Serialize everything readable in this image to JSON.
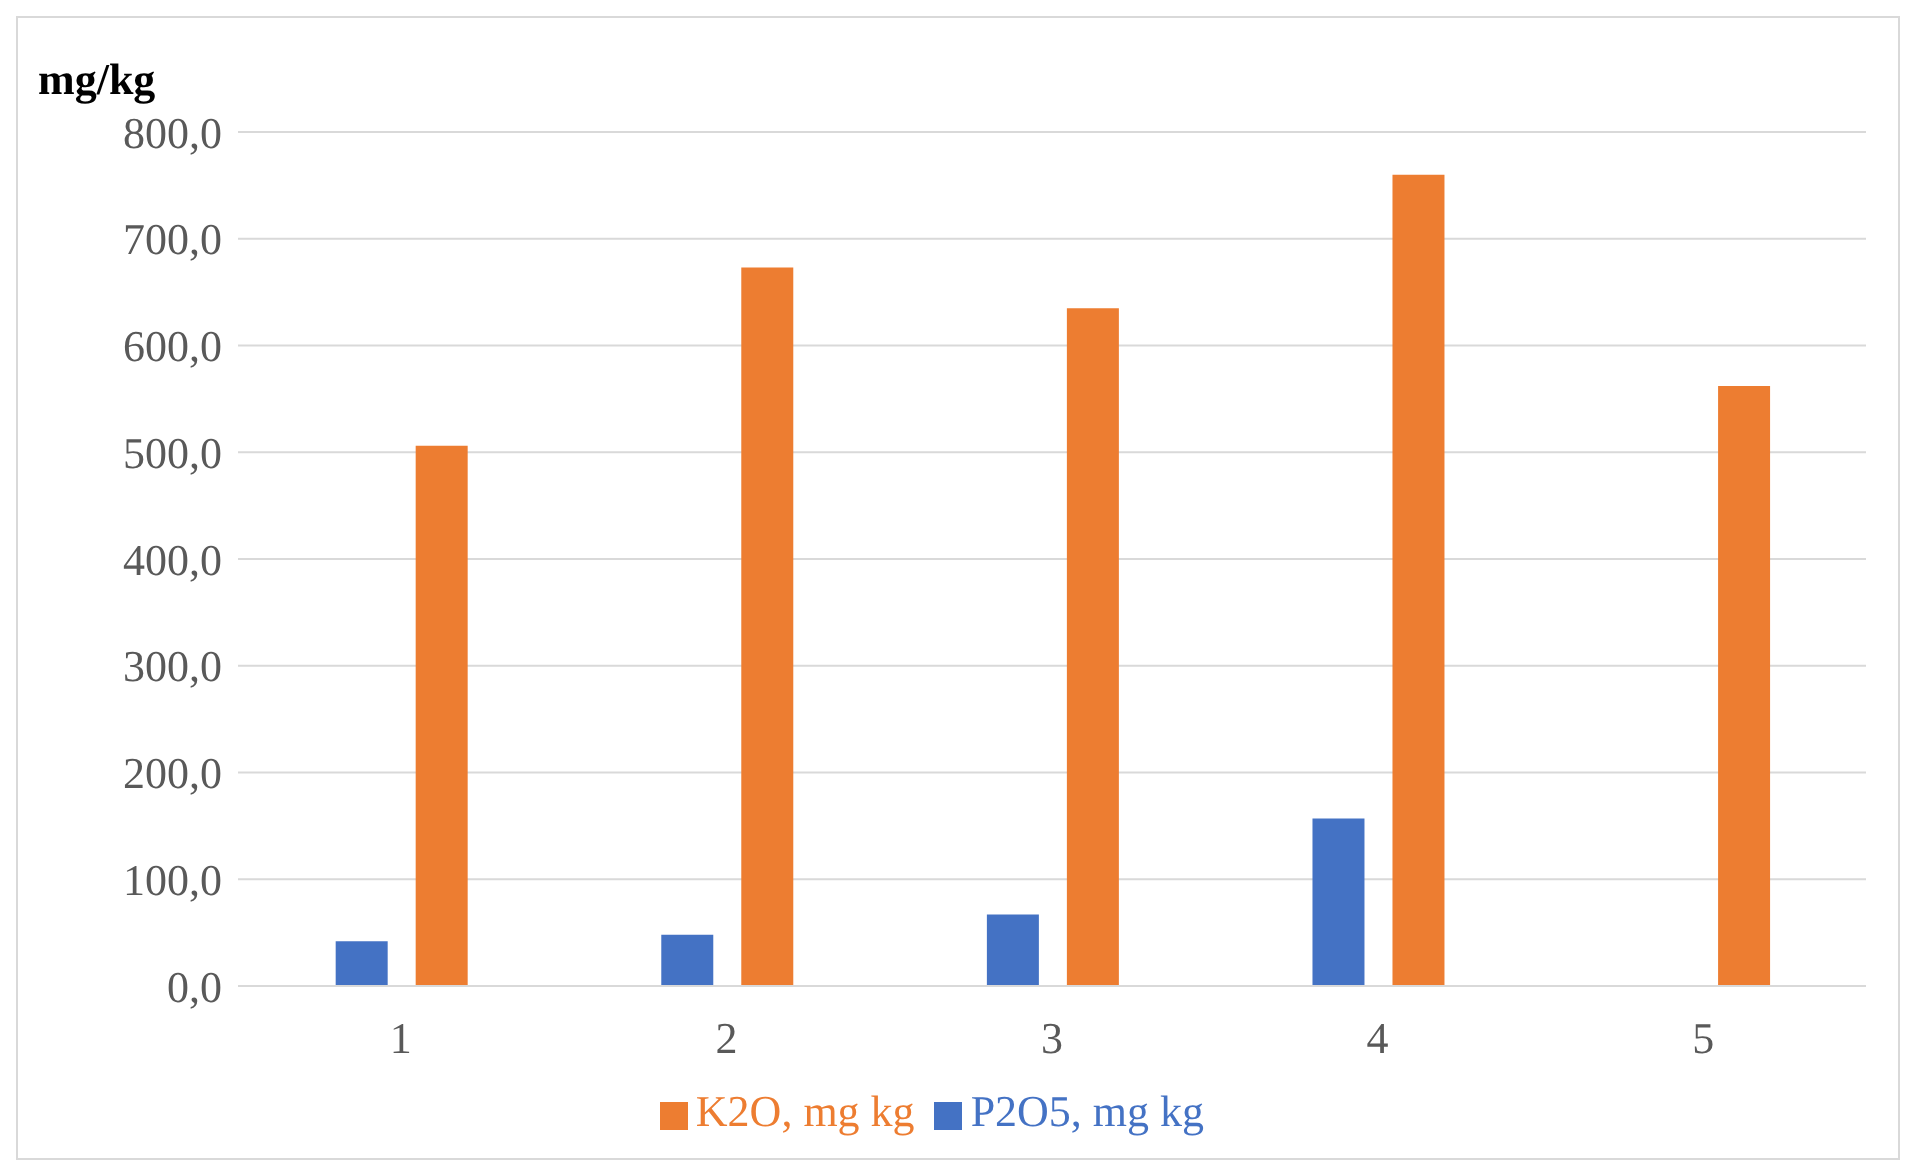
{
  "chart_data": {
    "type": "bar",
    "ylabel": "mg/kg",
    "categories": [
      "1",
      "2",
      "3",
      "4",
      "5"
    ],
    "series": [
      {
        "name": "P2O5, mg kg",
        "color": "#4472c4",
        "values": [
          42,
          48,
          67,
          157,
          null
        ]
      },
      {
        "name": "K2O, mg kg",
        "color": "#ed7d31",
        "values": [
          506,
          673,
          635,
          760,
          562
        ]
      }
    ],
    "ylim": [
      0,
      800
    ],
    "yticks": [
      {
        "value": 0,
        "label": "0,0"
      },
      {
        "value": 100,
        "label": "100,0"
      },
      {
        "value": 200,
        "label": "200,0"
      },
      {
        "value": 300,
        "label": "300,0"
      },
      {
        "value": 400,
        "label": "400,0"
      },
      {
        "value": 500,
        "label": "500,0"
      },
      {
        "value": 600,
        "label": "600,0"
      },
      {
        "value": 700,
        "label": "700,0"
      },
      {
        "value": 800,
        "label": "800,0"
      }
    ],
    "grid": "y",
    "legend": "bottom"
  }
}
